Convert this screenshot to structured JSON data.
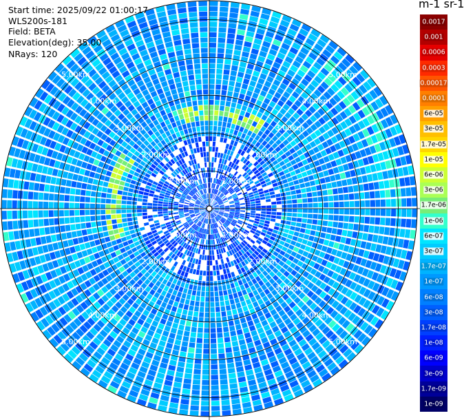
{
  "info": {
    "start_time": "Start time: 2025/09/22 01:00:17",
    "instrument": "WLS200s-181",
    "field": "Field: BETA",
    "elevation": "Elevation(deg): 35.00",
    "nrays": "NRays: 120"
  },
  "colorbar": {
    "title": "m-1 sr-1",
    "levels": [
      {
        "label": "0.0017",
        "color": "#8b0000"
      },
      {
        "label": "0.001",
        "color": "#b30000"
      },
      {
        "label": "0.0006",
        "color": "#e60000"
      },
      {
        "label": "0.0003",
        "color": "#ff2a00"
      },
      {
        "label": "0.00017",
        "color": "#ff5500"
      },
      {
        "label": "0.0001",
        "color": "#ff7f00"
      },
      {
        "label": "6e-05",
        "color": "#ff9f00"
      },
      {
        "label": "3e-05",
        "color": "#ffbf00"
      },
      {
        "label": "1.7e-05",
        "color": "#ffd700"
      },
      {
        "label": "1e-05",
        "color": "#ffff00"
      },
      {
        "label": "6e-06",
        "color": "#ccff33"
      },
      {
        "label": "3e-06",
        "color": "#aaff55"
      },
      {
        "label": "1.7e-06",
        "color": "#77ee77"
      },
      {
        "label": "1e-06",
        "color": "#33ffcc"
      },
      {
        "label": "6e-07",
        "color": "#00e5ff"
      },
      {
        "label": "3e-07",
        "color": "#00ccff"
      },
      {
        "label": "1.7e-07",
        "color": "#00b3ff"
      },
      {
        "label": "1e-07",
        "color": "#0099ff"
      },
      {
        "label": "6e-08",
        "color": "#007fff"
      },
      {
        "label": "3e-08",
        "color": "#005fff"
      },
      {
        "label": "1.7e-08",
        "color": "#003fff"
      },
      {
        "label": "1e-08",
        "color": "#001fff"
      },
      {
        "label": "6e-09",
        "color": "#0000ff"
      },
      {
        "label": "3e-09",
        "color": "#0000cc"
      },
      {
        "label": "1.7e-09",
        "color": "#000099"
      },
      {
        "label": "1e-09",
        "color": "#000066"
      }
    ]
  },
  "range_rings": [
    {
      "range_km": 1,
      "label": "1.00km"
    },
    {
      "range_km": 2,
      "label": "2.00km"
    },
    {
      "range_km": 3,
      "label": "3.00km"
    },
    {
      "range_km": 4,
      "label": "4.00km"
    },
    {
      "range_km": 5,
      "label": "5.00km"
    }
  ],
  "max_range_km": 5.5
}
